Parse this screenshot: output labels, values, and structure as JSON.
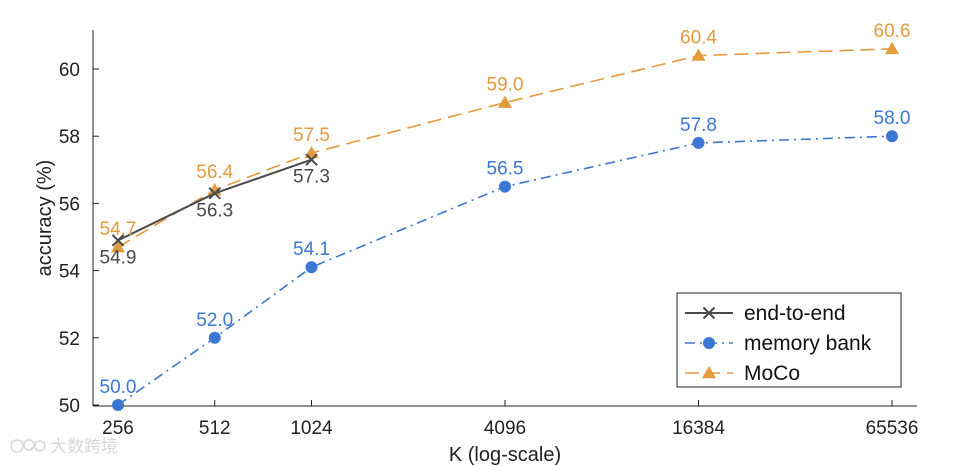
{
  "chart_data": {
    "type": "line",
    "xlabel": "K (log-scale)",
    "ylabel": "accuracy (%)",
    "x_scale": "log2",
    "x_ticks": [
      256,
      512,
      1024,
      4096,
      16384,
      65536
    ],
    "x_tick_labels": [
      "256",
      "512",
      "1024",
      "4096",
      "16384",
      "65536"
    ],
    "ylim": [
      50,
      61.2
    ],
    "y_ticks": [
      50,
      52,
      54,
      56,
      58,
      60
    ],
    "y_tick_labels": [
      "50",
      "52",
      "54",
      "56",
      "58",
      "60"
    ],
    "grid": false,
    "legend_position": "bottom-right",
    "series": [
      {
        "key": "end-to-end",
        "name": "end-to-end",
        "color": "#4a4a4a",
        "marker": "x",
        "line_style": "solid",
        "x": [
          256,
          512,
          1024
        ],
        "values": [
          54.9,
          56.3,
          57.3
        ],
        "labels": [
          "54.9",
          "56.3",
          "57.3"
        ],
        "label_position": "below"
      },
      {
        "key": "memory-bank",
        "name": "memory bank",
        "color": "#3a78d4",
        "marker": "circle",
        "line_style": "dashdot",
        "x": [
          256,
          512,
          1024,
          4096,
          16384,
          65536
        ],
        "values": [
          50.0,
          52.0,
          54.1,
          56.5,
          57.8,
          58.0
        ],
        "labels": [
          "50.0",
          "52.0",
          "54.1",
          "56.5",
          "57.8",
          "58.0"
        ],
        "label_position": "above"
      },
      {
        "key": "moco",
        "name": "MoCo",
        "color": "#e59a3c",
        "marker": "triangle",
        "line_style": "dashed",
        "x": [
          256,
          512,
          1024,
          4096,
          16384,
          65536
        ],
        "values": [
          54.7,
          56.4,
          57.5,
          59.0,
          60.4,
          60.6
        ],
        "labels": [
          "54.7",
          "56.4",
          "57.5",
          "59.0",
          "60.4",
          "60.6"
        ],
        "label_position": "above"
      }
    ]
  },
  "watermark": {
    "text": "大数跨境"
  }
}
